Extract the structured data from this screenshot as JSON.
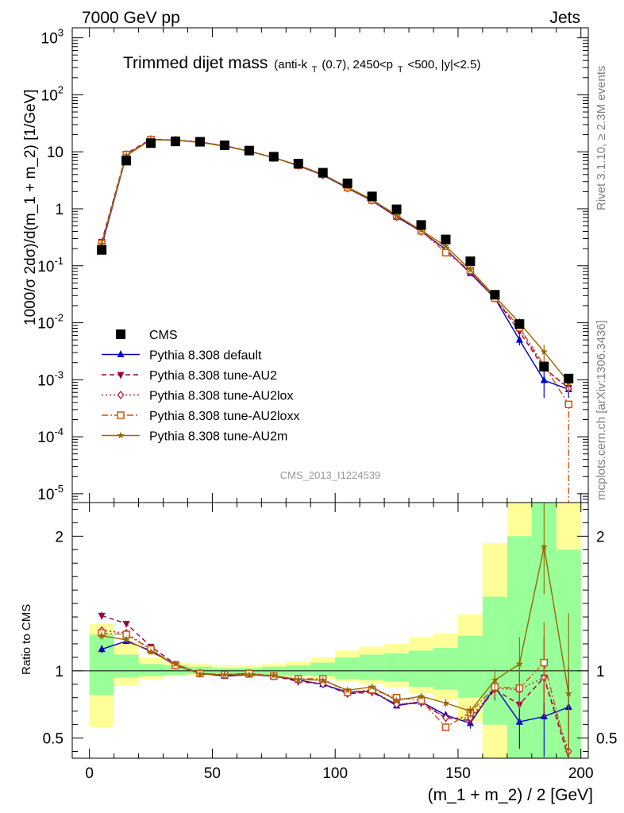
{
  "header": {
    "left": "7000 GeV pp",
    "right": "Jets"
  },
  "chart_data": [
    {
      "type": "line",
      "title": "Trimmed dijet mass",
      "subtitle_parts": [
        "(anti-k",
        "T",
        "(0.7), 2450<p",
        "T",
        "<500, |y|<2.5)"
      ],
      "ylabel": "1000/σ 2dσ)/d(m_1 + m_2) [1/GeV]",
      "y_scale": "log",
      "ylim": [
        7e-06,
        1500
      ],
      "xlim": [
        -7,
        203
      ],
      "y_ticks": [
        "10^{-5}",
        "10^{-4}",
        "10^{-3}",
        "10^{-2}",
        "10^{-1}",
        "1",
        "10",
        "10^{2}",
        "10^{3}"
      ],
      "legend_position": "bottom-left",
      "watermark": "CMS_2013_I1224539",
      "side_text_top": "Rivet 3.1.10, ≥ 2.3M events",
      "side_text_bottom": "mcplots.cern.ch [arXiv:1306.3436]",
      "x": [
        5,
        15,
        25,
        35,
        45,
        55,
        65,
        75,
        85,
        95,
        105,
        115,
        125,
        135,
        145,
        155,
        165,
        175,
        185,
        195
      ],
      "series": [
        {
          "name": "CMS",
          "color": "#000000",
          "marker": "square",
          "style": "none",
          "values": [
            0.19,
            7.0,
            14.2,
            15.2,
            15.0,
            13.0,
            10.5,
            8.2,
            6.2,
            4.3,
            2.8,
            1.65,
            0.98,
            0.52,
            0.29,
            0.12,
            0.031,
            0.0095,
            0.0017,
            0.00105
          ]
        },
        {
          "name": "Pythia 8.308 default",
          "color": "#0000cc",
          "marker": "triangle-up",
          "style": "solid",
          "values": [
            0.22,
            8.6,
            16.3,
            16.0,
            14.8,
            12.6,
            10.2,
            7.9,
            5.7,
            3.9,
            2.3,
            1.38,
            0.72,
            0.4,
            0.195,
            0.074,
            0.027,
            0.005,
            0.00098,
            0.00068
          ],
          "errors": [
            0,
            0,
            0,
            0,
            0,
            0,
            0,
            0,
            0,
            0,
            0,
            0,
            0,
            0,
            0,
            0,
            0,
            0.001,
            0.0005,
            0.0002
          ]
        },
        {
          "name": "Pythia 8.308 tune-AU2",
          "color": "#990044",
          "marker": "triangle-down",
          "style": "dashed",
          "values": [
            0.265,
            9.3,
            16.7,
            16.1,
            14.8,
            12.8,
            10.3,
            7.9,
            5.75,
            3.95,
            2.32,
            1.4,
            0.72,
            0.41,
            0.19,
            0.078,
            0.027,
            0.007,
            0.0016,
            0.00072
          ]
        },
        {
          "name": "Pythia 8.308 tune-AU2lox",
          "color": "#aa2244",
          "marker": "diamond-open",
          "style": "dotted",
          "values": [
            0.25,
            9.0,
            16.5,
            16.0,
            14.7,
            12.7,
            10.3,
            7.9,
            5.75,
            3.9,
            2.3,
            1.4,
            0.72,
            0.4,
            0.19,
            0.079,
            0.027,
            0.0082,
            0.0016,
            0.0007
          ]
        },
        {
          "name": "Pythia 8.308 tune-AU2loxx",
          "color": "#cc5511",
          "marker": "square-open",
          "style": "dashdot",
          "values": [
            0.245,
            8.9,
            16.4,
            16.0,
            14.8,
            12.7,
            10.3,
            7.9,
            5.8,
            4.05,
            2.35,
            1.42,
            0.78,
            0.41,
            0.17,
            0.083,
            0.027,
            0.0082,
            0.0018,
            0.00037
          ]
        },
        {
          "name": "Pythia 8.308 tune-AU2m",
          "color": "#996600",
          "marker": "star",
          "style": "solid",
          "values": [
            0.24,
            8.6,
            16.2,
            16.0,
            14.6,
            12.6,
            10.2,
            7.9,
            5.8,
            4.0,
            2.4,
            1.45,
            0.76,
            0.42,
            0.22,
            0.085,
            0.029,
            0.01,
            0.0031,
            0.0009
          ],
          "errors": [
            0,
            0,
            0,
            0,
            0,
            0,
            0,
            0,
            0,
            0,
            0,
            0,
            0,
            0,
            0,
            0,
            0,
            0.002,
            0.001,
            0.0003
          ]
        }
      ]
    },
    {
      "type": "line",
      "xlabel": "(m_1 + m_2) / 2 [GeV]",
      "ylabel": "Ratio to CMS",
      "ylim": [
        0.35,
        2.25
      ],
      "xlim": [
        -7,
        203
      ],
      "x_ticks": [
        0,
        50,
        100,
        150,
        200
      ],
      "y_ticks": [
        0.5,
        1,
        2
      ],
      "band_x_edges": [
        0,
        10,
        20,
        30,
        40,
        50,
        60,
        70,
        80,
        90,
        100,
        110,
        120,
        130,
        140,
        150,
        160,
        170,
        180,
        190,
        200
      ],
      "band_green": [
        [
          0.82,
          1.27
        ],
        [
          0.95,
          1.12
        ],
        [
          0.96,
          1.05
        ],
        [
          0.97,
          1.04
        ],
        [
          0.975,
          1.03
        ],
        [
          0.975,
          1.02
        ],
        [
          0.975,
          1.02
        ],
        [
          0.97,
          1.03
        ],
        [
          0.965,
          1.04
        ],
        [
          0.96,
          1.06
        ],
        [
          0.94,
          1.1
        ],
        [
          0.93,
          1.12
        ],
        [
          0.92,
          1.13
        ],
        [
          0.88,
          1.15
        ],
        [
          0.86,
          1.17
        ],
        [
          0.8,
          1.26
        ],
        [
          0.6,
          1.55
        ],
        [
          0.3,
          2.0
        ],
        [
          0.3,
          2.3
        ],
        [
          0.3,
          1.9
        ]
      ],
      "band_yellow": [
        [
          0.58,
          1.35
        ],
        [
          0.89,
          1.2
        ],
        [
          0.94,
          1.1
        ],
        [
          0.96,
          1.06
        ],
        [
          0.965,
          1.05
        ],
        [
          0.97,
          1.04
        ],
        [
          0.97,
          1.04
        ],
        [
          0.96,
          1.05
        ],
        [
          0.955,
          1.07
        ],
        [
          0.94,
          1.1
        ],
        [
          0.92,
          1.15
        ],
        [
          0.9,
          1.18
        ],
        [
          0.88,
          1.2
        ],
        [
          0.83,
          1.25
        ],
        [
          0.78,
          1.28
        ],
        [
          0.62,
          1.42
        ],
        [
          0.3,
          1.95
        ],
        [
          0.3,
          2.3
        ],
        [
          0.3,
          2.3
        ],
        [
          0.3,
          2.3
        ]
      ],
      "series": [
        {
          "name": "Pythia 8.308 default",
          "color": "#0000cc",
          "marker": "triangle-up",
          "style": "solid",
          "values": [
            1.16,
            1.22,
            1.15,
            1.04,
            0.98,
            0.96,
            0.97,
            0.96,
            0.93,
            0.9,
            0.84,
            0.85,
            0.74,
            0.77,
            0.67,
            0.61,
            0.88,
            0.62,
            0.66,
            0.73
          ],
          "errors": [
            0.03,
            0.02,
            0.02,
            0.01,
            0.01,
            0.01,
            0.01,
            0.01,
            0.01,
            0.01,
            0.01,
            0.01,
            0.02,
            0.02,
            0.03,
            0.04,
            0.08,
            0.2,
            0.3,
            0.3
          ]
        },
        {
          "name": "Pythia 8.308 tune-AU2",
          "color": "#990044",
          "marker": "triangle-down",
          "style": "dashed",
          "values": [
            1.41,
            1.35,
            1.18,
            1.05,
            0.98,
            0.97,
            0.98,
            0.96,
            0.92,
            0.9,
            0.83,
            0.84,
            0.75,
            0.76,
            0.65,
            0.63,
            0.86,
            0.75,
            0.95,
            0.3
          ],
          "errors": [
            0.03,
            0.02,
            0.02,
            0.01,
            0.01,
            0.01,
            0.01,
            0.01,
            0.01,
            0.01,
            0.01,
            0.01,
            0.02,
            0.02,
            0.03,
            0.04,
            0.08,
            0.15,
            0.3,
            0.3
          ]
        },
        {
          "name": "Pythia 8.308 tune-AU2lox",
          "color": "#aa2244",
          "marker": "diamond-open",
          "style": "dotted",
          "values": [
            1.3,
            1.28,
            1.16,
            1.04,
            0.98,
            0.97,
            0.98,
            0.96,
            0.93,
            0.9,
            0.83,
            0.85,
            0.75,
            0.77,
            0.65,
            0.65,
            0.87,
            0.86,
            0.95,
            0.4
          ],
          "errors": [
            0.03,
            0.02,
            0.02,
            0.01,
            0.01,
            0.01,
            0.01,
            0.01,
            0.01,
            0.01,
            0.01,
            0.01,
            0.02,
            0.02,
            0.03,
            0.04,
            0.08,
            0.15,
            0.3,
            0.3
          ]
        },
        {
          "name": "Pythia 8.308 tune-AU2loxx",
          "color": "#cc5511",
          "marker": "square-open",
          "style": "dashdot",
          "values": [
            1.28,
            1.27,
            1.16,
            1.04,
            0.98,
            0.97,
            0.98,
            0.96,
            0.94,
            0.94,
            0.84,
            0.86,
            0.8,
            0.78,
            0.58,
            0.69,
            0.88,
            0.87,
            1.06,
            0.35
          ],
          "errors": [
            0.03,
            0.02,
            0.02,
            0.01,
            0.01,
            0.01,
            0.01,
            0.01,
            0.01,
            0.01,
            0.01,
            0.01,
            0.02,
            0.02,
            0.03,
            0.04,
            0.08,
            0.15,
            0.3,
            0.3
          ]
        },
        {
          "name": "Pythia 8.308 tune-AU2m",
          "color": "#996600",
          "marker": "star",
          "style": "solid",
          "values": [
            1.26,
            1.23,
            1.14,
            1.05,
            0.975,
            0.97,
            0.97,
            0.965,
            0.935,
            0.93,
            0.855,
            0.88,
            0.78,
            0.81,
            0.76,
            0.7,
            0.93,
            1.05,
            1.92,
            0.83
          ],
          "errors": [
            0.03,
            0.02,
            0.02,
            0.01,
            0.01,
            0.01,
            0.01,
            0.01,
            0.01,
            0.01,
            0.01,
            0.01,
            0.02,
            0.02,
            0.03,
            0.04,
            0.08,
            0.2,
            0.35,
            0.6
          ]
        }
      ]
    }
  ]
}
